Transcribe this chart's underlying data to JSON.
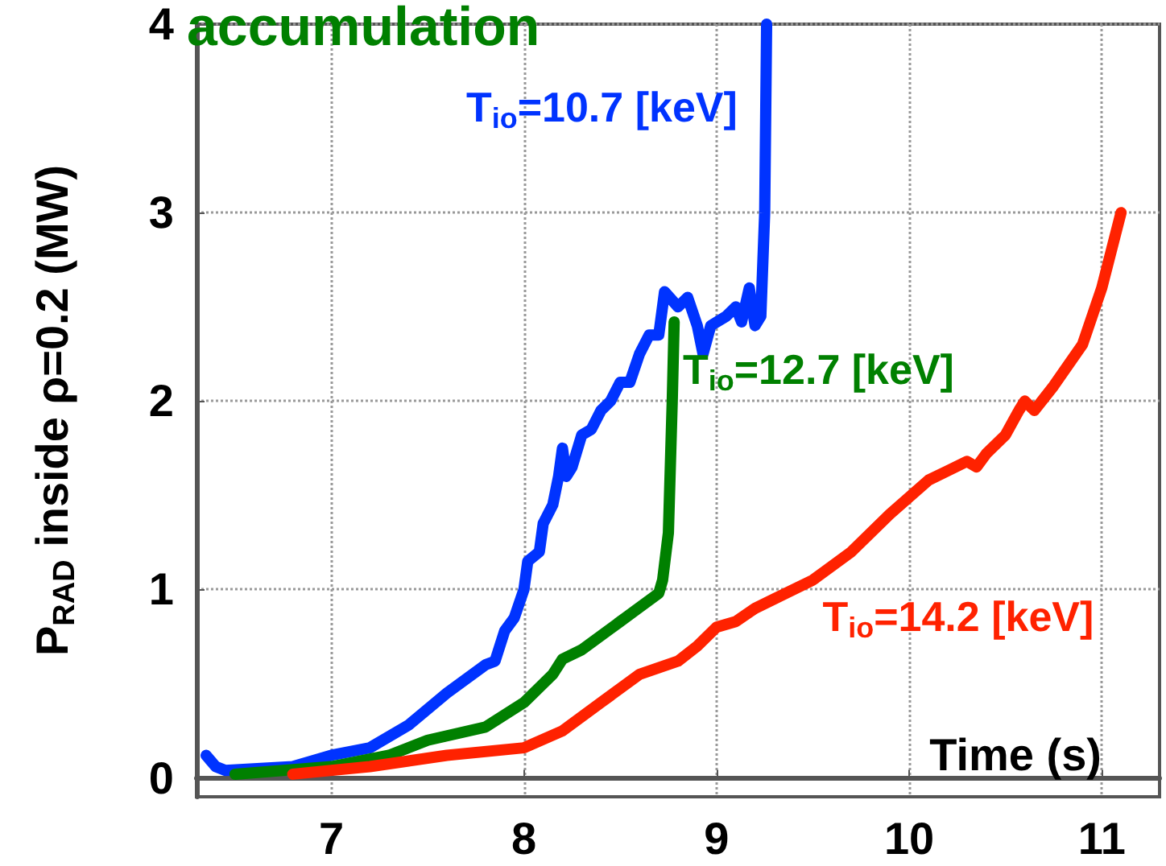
{
  "chart_data": {
    "type": "line",
    "xlabel": "Time (s)",
    "ylabel": "P$_{RAD}$ inside ρ=0.2 (MW)",
    "annotations": [
      "accumulation"
    ],
    "xlim": [
      6.3,
      11.3
    ],
    "xticks": [
      7,
      8,
      9,
      10,
      11
    ],
    "ylim": [
      -0.1,
      4
    ],
    "yticks": [
      0,
      1,
      2,
      3,
      4
    ],
    "grid": true,
    "legend": false,
    "marker": "none",
    "line_style": "solid",
    "series": [
      {
        "name": "T$_{io}$=10.7 [keV]",
        "color": "#0033ff",
        "x": [
          6.35,
          6.4,
          6.45,
          6.8,
          7.0,
          7.2,
          7.4,
          7.6,
          7.8,
          7.85,
          7.9,
          7.95,
          8.0,
          8.02,
          8.08,
          8.1,
          8.15,
          8.18,
          8.2,
          8.22,
          8.25,
          8.3,
          8.35,
          8.4,
          8.45,
          8.5,
          8.55,
          8.6,
          8.65,
          8.7,
          8.73,
          8.8,
          8.85,
          8.9,
          8.93,
          8.97,
          9.05,
          9.1,
          9.13,
          9.17,
          9.2,
          9.23,
          9.25,
          9.26
        ],
        "values": [
          0.12,
          0.06,
          0.04,
          0.06,
          0.12,
          0.16,
          0.28,
          0.45,
          0.6,
          0.62,
          0.78,
          0.85,
          1.0,
          1.15,
          1.2,
          1.35,
          1.45,
          1.6,
          1.75,
          1.6,
          1.65,
          1.82,
          1.85,
          1.95,
          2.0,
          2.1,
          2.1,
          2.25,
          2.35,
          2.35,
          2.58,
          2.5,
          2.55,
          2.4,
          2.25,
          2.4,
          2.45,
          2.5,
          2.42,
          2.6,
          2.4,
          2.45,
          3.0,
          4.0
        ]
      },
      {
        "name": "T$_{io}$=12.7 [keV]",
        "color": "#008000",
        "x": [
          6.5,
          7.0,
          7.3,
          7.5,
          7.8,
          8.0,
          8.15,
          8.2,
          8.3,
          8.5,
          8.7,
          8.72,
          8.75,
          8.77,
          8.78
        ],
        "values": [
          0.02,
          0.06,
          0.12,
          0.2,
          0.27,
          0.4,
          0.55,
          0.63,
          0.68,
          0.83,
          0.98,
          1.05,
          1.3,
          2.0,
          2.42
        ]
      },
      {
        "name": "T$_{io}$=14.2 [keV]",
        "color": "#ff2200",
        "x": [
          6.8,
          7.2,
          7.6,
          8.0,
          8.2,
          8.4,
          8.6,
          8.8,
          8.9,
          9.0,
          9.1,
          9.2,
          9.3,
          9.5,
          9.7,
          9.9,
          10.1,
          10.2,
          10.3,
          10.35,
          10.4,
          10.5,
          10.57,
          10.6,
          10.65,
          10.75,
          10.9,
          11.0,
          11.1
        ],
        "values": [
          0.02,
          0.06,
          0.12,
          0.16,
          0.25,
          0.4,
          0.55,
          0.62,
          0.7,
          0.8,
          0.83,
          0.9,
          0.95,
          1.05,
          1.2,
          1.4,
          1.58,
          1.63,
          1.68,
          1.65,
          1.72,
          1.82,
          1.95,
          2.0,
          1.95,
          2.08,
          2.3,
          2.6,
          3.0
        ]
      }
    ]
  }
}
